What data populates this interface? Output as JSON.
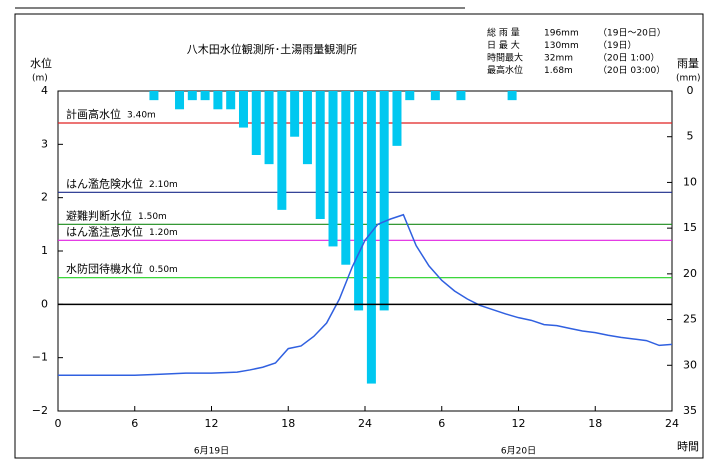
{
  "chart_data": {
    "type": "combo",
    "title": "八木田水位観測所･土湯雨量観測所",
    "y_label": "水位",
    "y_unit": "(m)",
    "y2_label": "雨量",
    "y2_unit": "(mm)",
    "x_label": "時間",
    "date_labels": [
      {
        "value": 12,
        "label": "6月19日"
      },
      {
        "value": 36,
        "label": "6月20日"
      }
    ],
    "summary": [
      [
        "総 雨 量",
        "196mm",
        "（19日～20日）"
      ],
      [
        "日 最 大",
        "130mm",
        "（19日）"
      ],
      [
        "時間最大",
        "32mm",
        "（20日 1:00）"
      ],
      [
        "最高水位",
        "1.68m",
        "（20日 03:00）"
      ]
    ],
    "xlim": [
      0,
      48
    ],
    "xticks": [
      0,
      6,
      12,
      18,
      24,
      {
        "value": 30,
        "label": "6"
      },
      {
        "value": 36,
        "label": "12"
      },
      {
        "value": 42,
        "label": "18"
      },
      {
        "value": 48,
        "label": "24"
      }
    ],
    "ylim": [
      -2,
      4
    ],
    "yticks": [
      {
        "value": -2,
        "label": "−2"
      },
      {
        "value": -1,
        "label": "−1"
      },
      0,
      1,
      2,
      3,
      4
    ],
    "y2lim": [
      0,
      35
    ],
    "y2ticks": [
      0,
      5,
      10,
      15,
      20,
      25,
      30,
      35
    ],
    "y2_inverted": true,
    "reference_lines": [
      {
        "label": "計画高水位",
        "value_label": "3.40m",
        "value": 3.4,
        "color": "#e02020"
      },
      {
        "label": "はん濫危険水位",
        "value_label": "2.10m",
        "value": 2.1,
        "color": "#1a2a8a"
      },
      {
        "label": "避難判断水位",
        "value_label": "1.50m",
        "value": 1.5,
        "color": "#1a8a1a"
      },
      {
        "label": "はん濫注意水位",
        "value_label": "1.20m",
        "value": 1.2,
        "color": "#e020e0"
      },
      {
        "label": "水防団待機水位",
        "value_label": "0.50m",
        "value": 0.5,
        "color": "#20d020"
      }
    ],
    "series": [
      {
        "type": "bar",
        "axis": "y2",
        "color": "#00c8f0",
        "x": [
          7.5,
          9.5,
          10.5,
          11.5,
          12.5,
          13.5,
          14.5,
          15.5,
          16.5,
          17.5,
          18.5,
          19.5,
          20.5,
          21.5,
          22.5,
          23.5,
          24.5,
          25.5,
          26.5,
          27.5,
          29.5,
          31.5,
          35.5
        ],
        "values": [
          1,
          2,
          1,
          1,
          2,
          2,
          4,
          7,
          8,
          13,
          5,
          8,
          14,
          17,
          19,
          24,
          32,
          24,
          6,
          1,
          1,
          1,
          1
        ]
      },
      {
        "type": "line",
        "axis": "y",
        "color": "#3060e0",
        "x": [
          0,
          6,
          8,
          10,
          12,
          13,
          14,
          15,
          16,
          17,
          18,
          19,
          20,
          21,
          22,
          23,
          24,
          25,
          26,
          27,
          28,
          29,
          30,
          31,
          32,
          33,
          34,
          35,
          36,
          37,
          38,
          39,
          40,
          41,
          42,
          43,
          44,
          45,
          46,
          47,
          48
        ],
        "values": [
          -1.33,
          -1.33,
          -1.31,
          -1.29,
          -1.29,
          -1.28,
          -1.27,
          -1.23,
          -1.18,
          -1.1,
          -0.83,
          -0.78,
          -0.6,
          -0.35,
          0.1,
          0.7,
          1.2,
          1.5,
          1.6,
          1.68,
          1.1,
          0.72,
          0.45,
          0.25,
          0.1,
          -0.02,
          -0.1,
          -0.18,
          -0.25,
          -0.3,
          -0.38,
          -0.4,
          -0.45,
          -0.5,
          -0.53,
          -0.58,
          -0.62,
          -0.65,
          -0.68,
          -0.77,
          -0.75
        ]
      }
    ]
  }
}
